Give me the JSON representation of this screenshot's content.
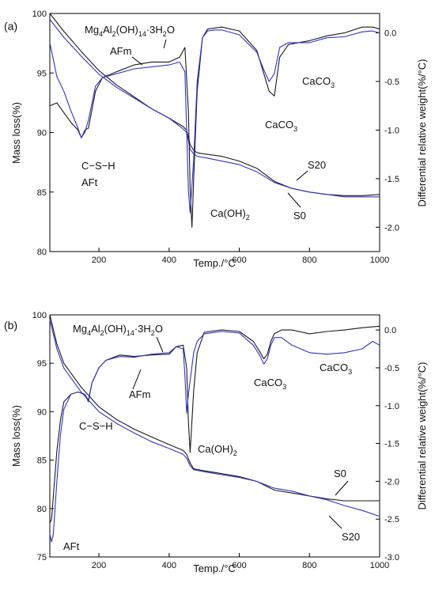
{
  "chart_data": [
    {
      "type": "line",
      "panel_label": "(a)",
      "xlabel": "Temp./°C",
      "ylabel": "Mass loss(%)",
      "y2label": "Differential relative weight(%/°C)",
      "xlim": [
        60,
        1000
      ],
      "ylim": [
        80,
        100
      ],
      "y2lim": [
        -2.25,
        0.2
      ],
      "xticks": [
        "200",
        "400",
        "600",
        "800",
        "1000"
      ],
      "yticks": [
        "80",
        "85",
        "90",
        "95",
        "100"
      ],
      "y2ticks": [
        "0.0",
        "-0.5",
        "-1.0",
        "-1.5",
        "-2.0"
      ],
      "grid": false,
      "colors": {
        "S0": "#1a1a1a",
        "S20": "#2f35c8"
      },
      "series": [
        {
          "name": "S0",
          "kind": "mass",
          "axis": "left",
          "x": [
            60,
            100,
            150,
            200,
            250,
            300,
            350,
            400,
            440,
            450,
            460,
            470,
            480,
            500,
            550,
            600,
            650,
            700,
            750,
            800,
            850,
            900,
            950,
            1000
          ],
          "y": [
            100,
            98.5,
            96.8,
            95.2,
            94.0,
            93.0,
            92.0,
            91.2,
            90.5,
            90.2,
            89.0,
            88.5,
            88.3,
            88.2,
            88.0,
            87.6,
            87.0,
            85.9,
            85.3,
            85.0,
            84.8,
            84.7,
            84.7,
            84.8
          ]
        },
        {
          "name": "S20",
          "kind": "mass",
          "axis": "left",
          "x": [
            60,
            100,
            150,
            200,
            250,
            300,
            350,
            400,
            440,
            450,
            460,
            470,
            480,
            500,
            550,
            600,
            650,
            700,
            750,
            800,
            850,
            900,
            950,
            1000
          ],
          "y": [
            99.5,
            98.0,
            96.4,
            94.9,
            93.8,
            92.9,
            92.0,
            91.2,
            90.3,
            90.0,
            88.6,
            88.2,
            88.0,
            87.9,
            87.6,
            87.3,
            86.7,
            85.8,
            85.3,
            85.0,
            84.8,
            84.6,
            84.6,
            84.6
          ]
        },
        {
          "name": "S0",
          "kind": "dtg",
          "axis": "right",
          "x": [
            60,
            80,
            100,
            120,
            140,
            150,
            160,
            170,
            190,
            210,
            250,
            300,
            350,
            400,
            430,
            445,
            455,
            460,
            465,
            470,
            480,
            495,
            510,
            530,
            550,
            600,
            650,
            670,
            685,
            700,
            715,
            740,
            800,
            850,
            900,
            950,
            980,
            1000
          ],
          "y": [
            -0.75,
            -0.72,
            -0.82,
            -0.92,
            -1.0,
            -1.08,
            -1.0,
            -0.98,
            -0.6,
            -0.46,
            -0.4,
            -0.33,
            -0.3,
            -0.3,
            -0.25,
            -0.15,
            -0.8,
            -1.6,
            -2.0,
            -1.5,
            -0.6,
            -0.05,
            0.04,
            0.05,
            0.06,
            0.02,
            -0.18,
            -0.42,
            -0.6,
            -0.65,
            -0.25,
            -0.12,
            -0.08,
            -0.03,
            0.0,
            0.06,
            0.06,
            0.04
          ]
        },
        {
          "name": "S20",
          "kind": "dtg",
          "axis": "right",
          "x": [
            60,
            80,
            100,
            120,
            140,
            150,
            160,
            170,
            190,
            210,
            250,
            300,
            350,
            400,
            430,
            445,
            450,
            455,
            460,
            470,
            480,
            495,
            510,
            530,
            550,
            600,
            650,
            670,
            685,
            700,
            715,
            740,
            800,
            850,
            900,
            950,
            980,
            1000
          ],
          "y": [
            -0.1,
            -0.45,
            -0.6,
            -0.8,
            -0.98,
            -1.08,
            -1.02,
            -0.9,
            -0.55,
            -0.46,
            -0.42,
            -0.37,
            -0.35,
            -0.33,
            -0.3,
            -0.4,
            -1.0,
            -1.62,
            -1.85,
            -1.3,
            -0.5,
            -0.05,
            0.02,
            0.03,
            0.03,
            -0.02,
            -0.2,
            -0.38,
            -0.5,
            -0.42,
            -0.15,
            -0.1,
            -0.1,
            -0.05,
            -0.04,
            0.01,
            0.02,
            0.0
          ]
        }
      ],
      "annotations": {
        "mg": "Mg4Al2(OH)14·3H2O",
        "afm": "AFm",
        "caco3_upper": "CaCO3",
        "caco3_lower": "CaCO3",
        "csh": "C−S−H",
        "aft": "AFt",
        "caoh": "Ca(OH)2",
        "s20": "S20",
        "s0": "S0"
      }
    },
    {
      "type": "line",
      "panel_label": "(b)",
      "xlabel": "Temp./°C",
      "ylabel": "Mass loss(%)",
      "y2label": "Differential relative weight(%/°C)",
      "xlim": [
        60,
        1000
      ],
      "ylim": [
        75,
        100
      ],
      "y2lim": [
        -3.0,
        0.2
      ],
      "xticks": [
        "200",
        "400",
        "600",
        "800",
        "1000"
      ],
      "yticks": [
        "75",
        "80",
        "85",
        "90",
        "95",
        "100"
      ],
      "y2ticks": [
        "0.0",
        "-0.5",
        "-1.0",
        "-1.5",
        "-2.0",
        "-2.5",
        "-3.0"
      ],
      "grid": false,
      "colors": {
        "S0": "#1a1a1a",
        "S20": "#2f35c8"
      },
      "series": [
        {
          "name": "S0",
          "kind": "mass",
          "axis": "left",
          "x": [
            60,
            80,
            100,
            150,
            200,
            250,
            300,
            350,
            400,
            440,
            450,
            460,
            470,
            500,
            550,
            600,
            650,
            700,
            750,
            800,
            850,
            900,
            950,
            1000
          ],
          "y": [
            100,
            97.0,
            95.0,
            92.5,
            90.5,
            89.2,
            88.2,
            87.4,
            86.6,
            86.0,
            85.6,
            84.7,
            84.1,
            83.9,
            83.6,
            83.3,
            82.8,
            81.9,
            81.6,
            81.3,
            81.0,
            80.8,
            80.8,
            80.8
          ]
        },
        {
          "name": "S20",
          "kind": "mass",
          "axis": "left",
          "x": [
            60,
            80,
            100,
            150,
            200,
            250,
            300,
            350,
            400,
            440,
            450,
            460,
            470,
            500,
            550,
            600,
            650,
            700,
            750,
            800,
            850,
            900,
            950,
            1000
          ],
          "y": [
            99.5,
            96.5,
            94.5,
            92.0,
            90.0,
            88.8,
            87.8,
            86.9,
            86.2,
            85.6,
            85.2,
            84.4,
            84.0,
            83.8,
            83.5,
            83.2,
            82.8,
            82.1,
            81.8,
            81.3,
            80.9,
            80.3,
            79.8,
            79.2
          ]
        },
        {
          "name": "S0",
          "kind": "dtg",
          "axis": "right",
          "x": [
            60,
            65,
            70,
            80,
            90,
            100,
            120,
            140,
            160,
            170,
            180,
            200,
            220,
            260,
            300,
            350,
            400,
            420,
            440,
            450,
            455,
            460,
            470,
            480,
            500,
            550,
            600,
            640,
            660,
            670,
            680,
            690,
            700,
            720,
            750,
            800,
            850,
            900,
            950,
            1000
          ],
          "y": [
            -2.55,
            -2.5,
            -2.2,
            -1.6,
            -1.2,
            -0.95,
            -0.85,
            -0.82,
            -0.85,
            -0.93,
            -0.7,
            -0.5,
            -0.4,
            -0.33,
            -0.35,
            -0.33,
            -0.32,
            -0.22,
            -0.2,
            -0.5,
            -1.2,
            -1.62,
            -0.8,
            -0.3,
            -0.03,
            0.0,
            -0.02,
            -0.15,
            -0.3,
            -0.38,
            -0.32,
            -0.15,
            -0.05,
            0.0,
            0.0,
            -0.05,
            -0.02,
            0.0,
            0.03,
            0.05
          ]
        },
        {
          "name": "S20",
          "kind": "dtg",
          "axis": "right",
          "x": [
            60,
            65,
            70,
            80,
            90,
            100,
            120,
            140,
            160,
            170,
            180,
            200,
            220,
            260,
            300,
            350,
            400,
            420,
            440,
            445,
            450,
            455,
            470,
            480,
            500,
            550,
            600,
            640,
            660,
            670,
            680,
            690,
            700,
            720,
            750,
            800,
            850,
            900,
            950,
            980,
            1000
          ],
          "y": [
            -2.7,
            -2.8,
            -2.7,
            -2.0,
            -1.4,
            -1.05,
            -0.85,
            -0.82,
            -0.85,
            -0.95,
            -0.7,
            -0.5,
            -0.4,
            -0.35,
            -0.36,
            -0.32,
            -0.3,
            -0.22,
            -0.25,
            -0.6,
            -1.1,
            -0.85,
            -0.3,
            -0.15,
            -0.05,
            -0.02,
            -0.04,
            -0.2,
            -0.35,
            -0.45,
            -0.38,
            -0.2,
            -0.1,
            -0.1,
            -0.2,
            -0.3,
            -0.32,
            -0.3,
            -0.25,
            -0.15,
            -0.2
          ]
        }
      ],
      "annotations": {
        "mg": "Mg4Al2(OH)14·3H2O",
        "afm": "AFm",
        "caco3_left": "CaCO3",
        "caco3_right": "CaCO3",
        "csh": "C−S−H",
        "aft": "AFt",
        "caoh": "Ca(OH)2",
        "s0": "S0",
        "s20": "S20"
      }
    }
  ]
}
